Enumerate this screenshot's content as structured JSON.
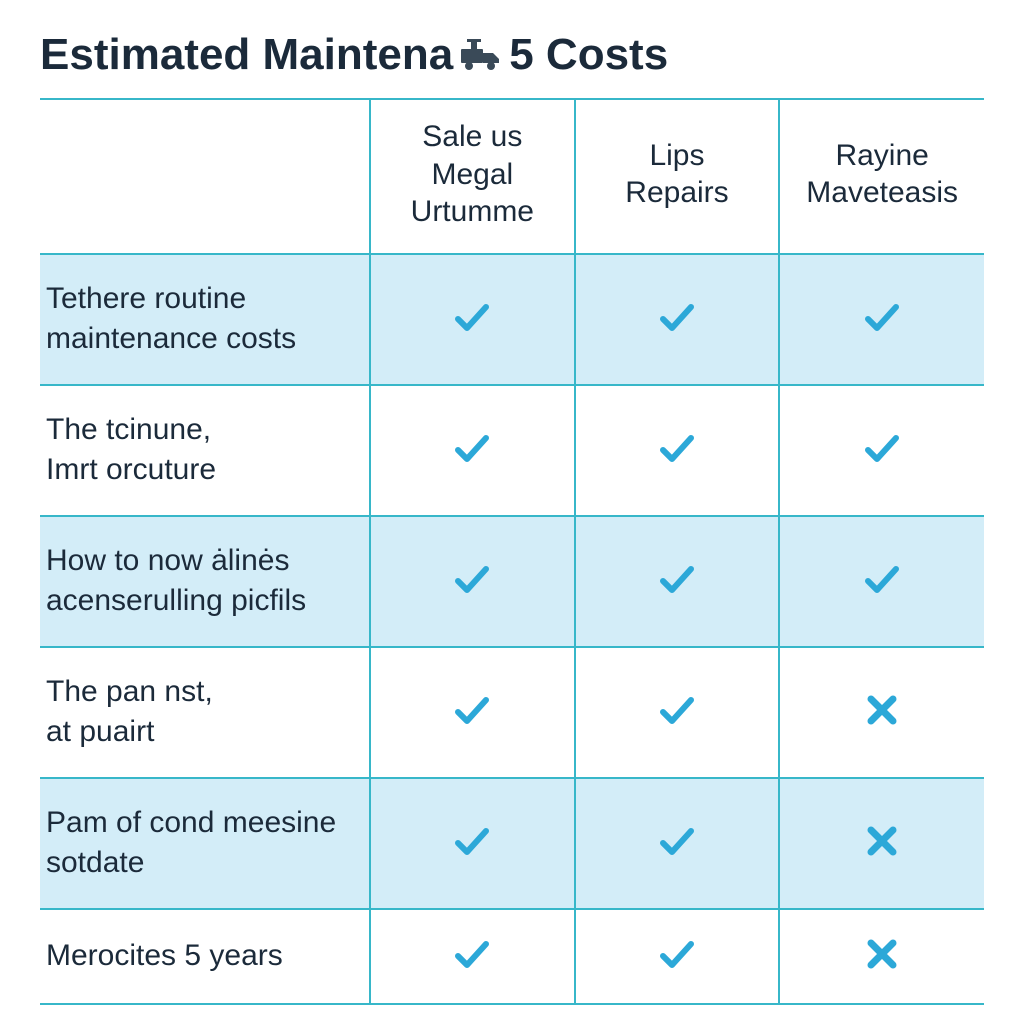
{
  "title": {
    "part1": "Estimated Maintena",
    "part2": "5 Costs",
    "color": "#1b2a3a",
    "fontsize": 44,
    "fontweight": 700
  },
  "table": {
    "border_color": "#37b7c9",
    "stripe_color": "#d3edf8",
    "background_color": "#ffffff",
    "check_color": "#2ca8d8",
    "x_color": "#2ca8d8",
    "label_color": "#1b2a3a",
    "header_fontsize": 30,
    "label_fontsize": 30,
    "icon_size": 40,
    "col_widths": {
      "label": 330
    },
    "columns": [
      "Sale us\nMegal\nUrtumme",
      "Lips\nRepairs",
      "Rayine\nMaveteasis"
    ],
    "rows": [
      {
        "label": "Tethere routine maintenance costs",
        "cells": [
          "check",
          "check",
          "check"
        ],
        "striped": true
      },
      {
        "label": "The tcinune,\nImrt orcuture",
        "cells": [
          "check",
          "check",
          "check"
        ],
        "striped": false
      },
      {
        "label": "How to now ȧlinės acenserulling picfils",
        "cells": [
          "check",
          "check",
          "check"
        ],
        "striped": true
      },
      {
        "label": "The pan nst,\nat puairt",
        "cells": [
          "check",
          "check",
          "x"
        ],
        "striped": false
      },
      {
        "label": "Pam of cond meesine sotdate",
        "cells": [
          "check",
          "check",
          "x"
        ],
        "striped": true
      },
      {
        "label": "Merocites 5 years",
        "cells": [
          "check",
          "check",
          "x"
        ],
        "striped": false
      }
    ]
  },
  "title_icon_color": "#3a4a58"
}
